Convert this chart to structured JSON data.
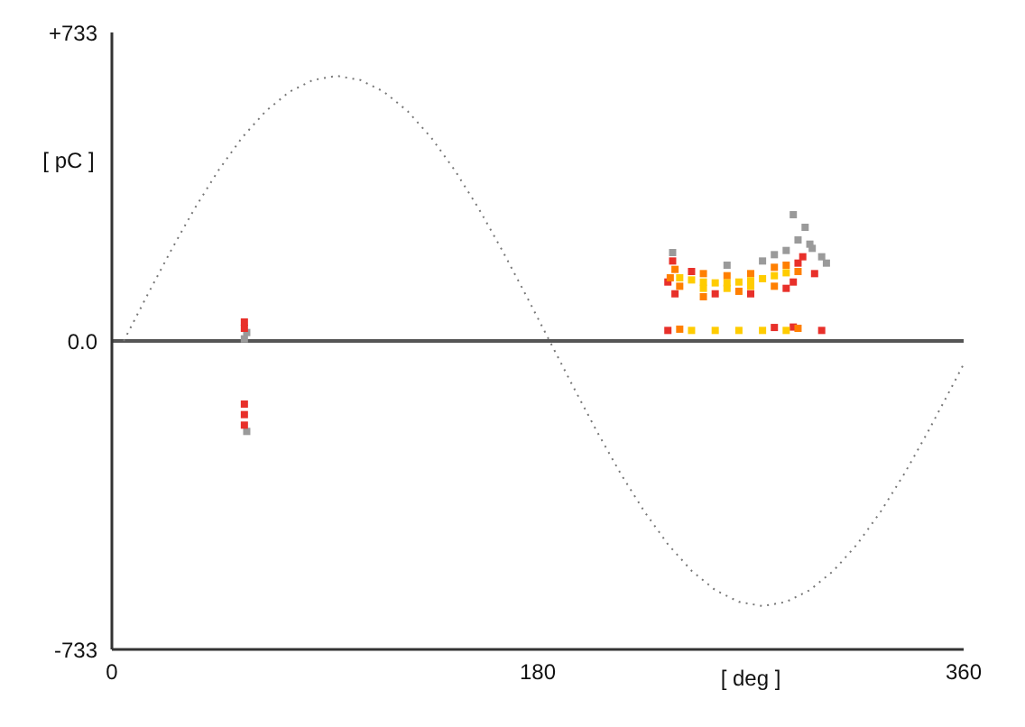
{
  "chart_data": {
    "type": "scatter",
    "xlabel": "[ deg ]",
    "ylabel": "[ pC ]",
    "xlim": [
      0,
      360
    ],
    "xticks": [
      0,
      180,
      360
    ],
    "ylim": [
      -733,
      733
    ],
    "yticks": [
      {
        "value": 733,
        "label": "+733"
      },
      {
        "value": 0,
        "label": "0.0"
      },
      -733
    ],
    "grid": false,
    "marker": "square",
    "ref_lines": [
      {
        "axis": "y",
        "value": 0,
        "label": null,
        "color": "#555555"
      }
    ],
    "series": [
      {
        "type": "line",
        "color": "#777777",
        "line_style": "dotted",
        "marker": "none",
        "x": [
          5,
          15,
          25,
          35,
          45,
          55,
          65,
          75,
          85,
          95,
          105,
          115,
          125,
          135,
          145,
          155,
          165,
          175,
          185,
          195,
          205,
          215,
          225,
          235,
          245,
          255,
          265,
          275,
          285,
          295,
          305,
          315,
          325,
          335,
          345,
          355,
          360
        ],
        "values": [
          0,
          109,
          215,
          315,
          405,
          483,
          546,
          592,
          620,
          630,
          620,
          592,
          546,
          483,
          405,
          315,
          215,
          109,
          0,
          -109,
          -215,
          -315,
          -405,
          -483,
          -546,
          -592,
          -620,
          -630,
          -620,
          -592,
          -546,
          -483,
          -405,
          -315,
          -215,
          -109,
          -55
        ]
      },
      {
        "color": "#9a9a9a",
        "x": [
          237,
          260,
          275,
          285,
          290,
          293,
          295,
          300,
          302,
          288,
          296,
          280,
          57,
          57,
          56
        ],
        "values": [
          210,
          180,
          190,
          215,
          240,
          270,
          230,
          200,
          185,
          300,
          220,
          205,
          20,
          -215,
          5
        ]
      },
      {
        "color": "#e8302a",
        "x": [
          235,
          237,
          245,
          255,
          270,
          285,
          290,
          292,
          288,
          238,
          297,
          235,
          300,
          280,
          288,
          56,
          56,
          56,
          56,
          56
        ],
        "values": [
          140,
          190,
          165,
          112,
          112,
          125,
          185,
          200,
          140,
          112,
          160,
          25,
          25,
          32,
          33,
          30,
          45,
          -150,
          -175,
          -200
        ]
      },
      {
        "color": "#ff7f00",
        "x": [
          236,
          238,
          240,
          250,
          260,
          270,
          280,
          285,
          250,
          265,
          280,
          290,
          240,
          290
        ],
        "values": [
          150,
          170,
          130,
          160,
          155,
          160,
          175,
          180,
          105,
          118,
          130,
          165,
          28,
          30
        ]
      },
      {
        "color": "#ffcc00",
        "x": [
          240,
          245,
          250,
          255,
          260,
          265,
          270,
          275,
          280,
          285,
          250,
          260,
          270,
          245,
          255,
          265,
          275,
          285
        ],
        "values": [
          150,
          145,
          140,
          138,
          138,
          140,
          143,
          148,
          155,
          162,
          125,
          125,
          130,
          25,
          25,
          25,
          25,
          25
        ]
      }
    ]
  }
}
